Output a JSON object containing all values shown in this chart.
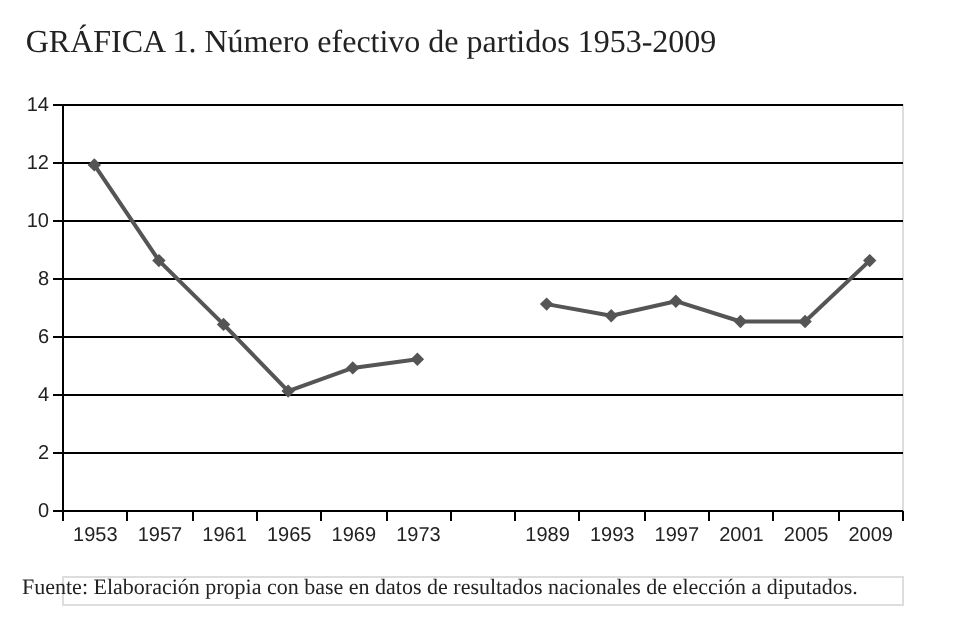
{
  "chart_data": {
    "type": "line",
    "title": "GRÁFICA 1. Número efectivo de partidos 1953-2009",
    "categories": [
      "1953",
      "1957",
      "1961",
      "1965",
      "1969",
      "1973",
      null,
      "1989",
      "1993",
      "1997",
      "2001",
      "2005",
      "2009"
    ],
    "series": [
      {
        "color": "#555555",
        "values": [
          11.9,
          8.6,
          6.4,
          4.1,
          4.9,
          5.2,
          null,
          7.1,
          6.7,
          7.2,
          6.5,
          6.5,
          8.6
        ]
      }
    ],
    "ylim": [
      0,
      14
    ],
    "yticks": [
      0,
      2,
      4,
      6,
      8,
      10,
      12,
      14
    ],
    "grid": "y",
    "marker": "diamond",
    "line_style": "solid",
    "annotations": [
      "Fuente: Elaboración propia con base en datos de resultados nacionales de elección a diputados."
    ]
  }
}
